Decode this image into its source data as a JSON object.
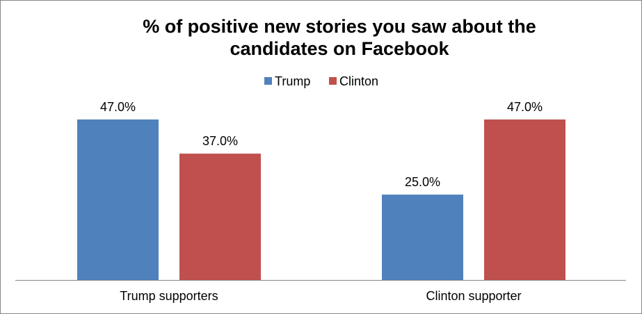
{
  "chart_data": {
    "type": "bar",
    "title_lines": [
      "% of positive new stories you saw about the",
      "candidates on Facebook"
    ],
    "categories": [
      "Trump supporters",
      "Clinton supporter"
    ],
    "series": [
      {
        "name": "Trump",
        "color": "#4F81BD",
        "values": [
          47.0,
          25.0
        ],
        "labels": [
          "47.0%",
          "25.0%"
        ]
      },
      {
        "name": "Clinton",
        "color": "#C0504D",
        "values": [
          37.0,
          47.0
        ],
        "labels": [
          "37.0%",
          "47.0%"
        ]
      }
    ],
    "ylim": [
      0,
      47
    ],
    "legend_position": "top",
    "grid": false,
    "xlabel": "",
    "ylabel": ""
  }
}
